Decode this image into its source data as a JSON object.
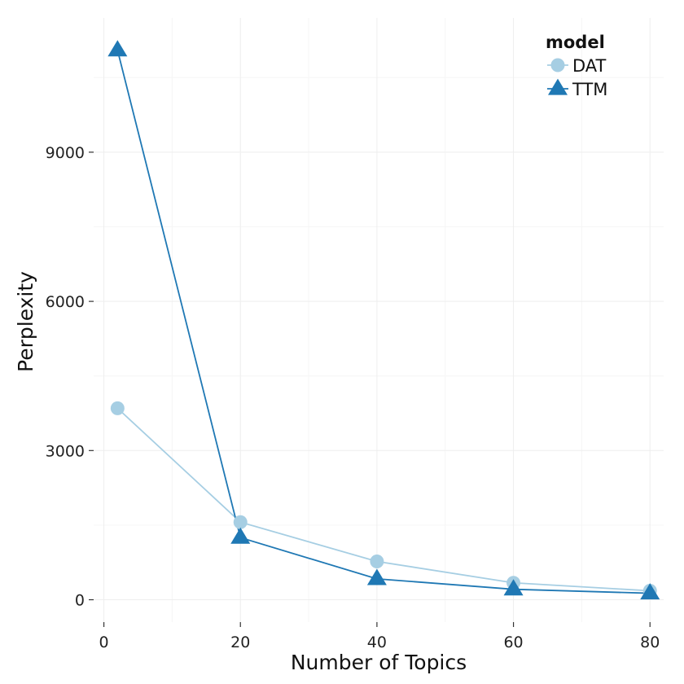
{
  "chart_data": {
    "type": "line",
    "xlabel": "Number of Topics",
    "ylabel": "Perplexity",
    "x": [
      2,
      20,
      40,
      60,
      80
    ],
    "xlim": [
      -1.5,
      82
    ],
    "ylim": [
      -450,
      11700
    ],
    "x_ticks": [
      0,
      20,
      40,
      60,
      80
    ],
    "x_tick_labels": [
      "0",
      "20",
      "40",
      "60",
      "80"
    ],
    "y_ticks": [
      0,
      3000,
      6000,
      9000
    ],
    "y_tick_labels": [
      "0",
      "3000",
      "6000",
      "9000"
    ],
    "grid": true,
    "legend": {
      "title": "model",
      "position": "top-right"
    },
    "series": [
      {
        "name": "DAT",
        "values": [
          3850,
          1560,
          770,
          340,
          180
        ],
        "color": "#a6cee3",
        "marker": "circle"
      },
      {
        "name": "TTM",
        "values": [
          11050,
          1250,
          420,
          210,
          130
        ],
        "color": "#1f78b4",
        "marker": "triangle"
      }
    ]
  }
}
